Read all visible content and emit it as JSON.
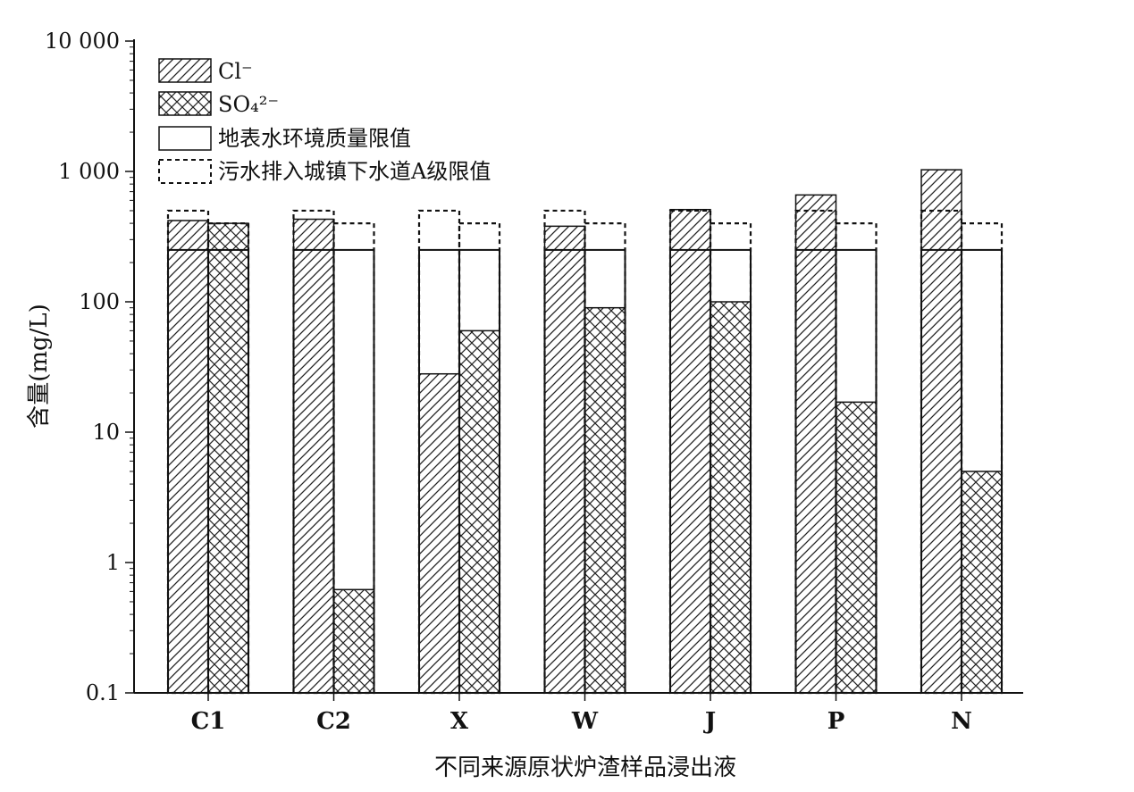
{
  "chart_data": {
    "type": "bar",
    "scale": "log",
    "categories": [
      "C1",
      "C2",
      "X",
      "W",
      "J",
      "P",
      "N"
    ],
    "xlabel": "不同来源原状炉渣样品浸出液",
    "ylabel": "含量(mg/L)",
    "ylim": [
      0.1,
      10000
    ],
    "yticks": [
      0.1,
      1,
      10,
      100,
      1000,
      10000
    ],
    "ytick_labels": [
      "0.1",
      "1",
      "10",
      "100",
      "1 000",
      "10 000"
    ],
    "series": [
      {
        "name": "Cl⁻",
        "pattern": "diagonal-hatch",
        "values": [
          420,
          430,
          28,
          380,
          510,
          660,
          1030
        ]
      },
      {
        "name": "SO₄²⁻",
        "pattern": "cross-hatch",
        "values": [
          400,
          0.62,
          60,
          90,
          100,
          17,
          5
        ]
      }
    ],
    "limits": [
      {
        "name": "地表水环境质量限值",
        "style": "solid",
        "values": [
          250,
          250
        ]
      },
      {
        "name": "污水排入城镇下水道A级限值",
        "style": "dashed",
        "values": [
          500,
          400
        ]
      }
    ],
    "legend_position": "top-left",
    "grid": false
  }
}
